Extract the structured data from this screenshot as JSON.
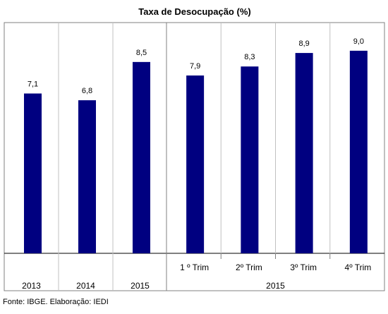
{
  "chart_data": {
    "type": "bar",
    "title": "Taxa de Desocupação (%)",
    "categories": [
      "2013",
      "2014",
      "2015",
      "1 º Trim",
      "2º Trim",
      "3º Trim",
      "4º Trim"
    ],
    "values": [
      7.1,
      6.8,
      8.5,
      7.9,
      8.3,
      8.9,
      9.0
    ],
    "value_labels": [
      "7,1",
      "6,8",
      "8,5",
      "7,9",
      "8,3",
      "8,9",
      "9,0"
    ],
    "group_labels": [
      {
        "label": "2013",
        "categories": [
          0
        ]
      },
      {
        "label": "2014",
        "categories": [
          1
        ]
      },
      {
        "label": "2015",
        "categories": [
          2
        ]
      },
      {
        "label": "2015",
        "categories": [
          3,
          4,
          5,
          6
        ]
      }
    ],
    "ylim": [
      0,
      10
    ],
    "y_axis_visible": false,
    "grid": false,
    "legend": "none",
    "bar_color": "#000080",
    "source": "Fonte: IBGE. Elaboração: IEDI"
  }
}
